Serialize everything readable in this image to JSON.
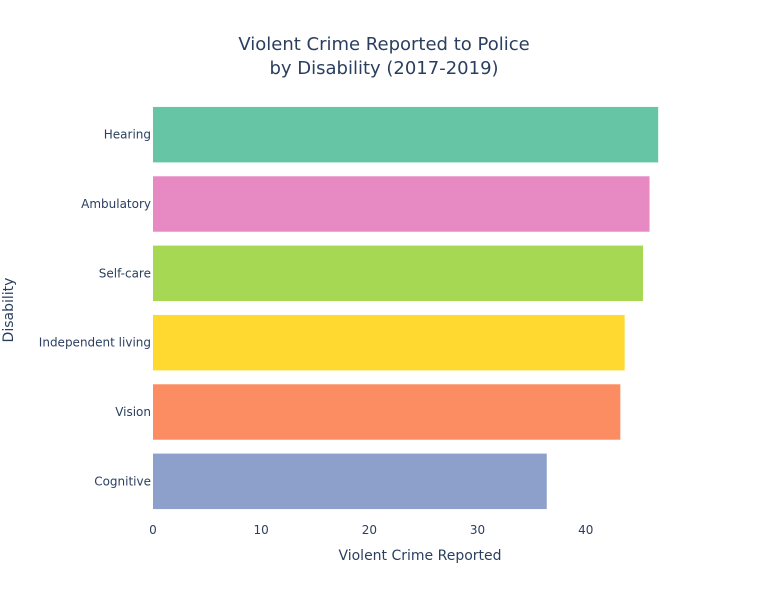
{
  "chart_data": {
    "type": "bar",
    "orientation": "horizontal",
    "title": [
      "Violent Crime Reported to Police",
      "by Disability (2017-2019)"
    ],
    "xlabel": "Violent Crime Reported",
    "ylabel": "Disability",
    "xlim": [
      0,
      47.7
    ],
    "xticks": [
      0,
      10,
      20,
      30,
      40
    ],
    "grid": false,
    "categories": [
      "Hearing",
      "Ambulatory",
      "Self-care",
      "Independent living",
      "Vision",
      "Cognitive"
    ],
    "values": [
      46.7,
      45.9,
      45.3,
      43.6,
      43.2,
      36.4
    ],
    "colors": [
      "#66c5a4",
      "#e78ac4",
      "#a6d854",
      "#ffd92f",
      "#fc8d62",
      "#8da0cb"
    ]
  }
}
